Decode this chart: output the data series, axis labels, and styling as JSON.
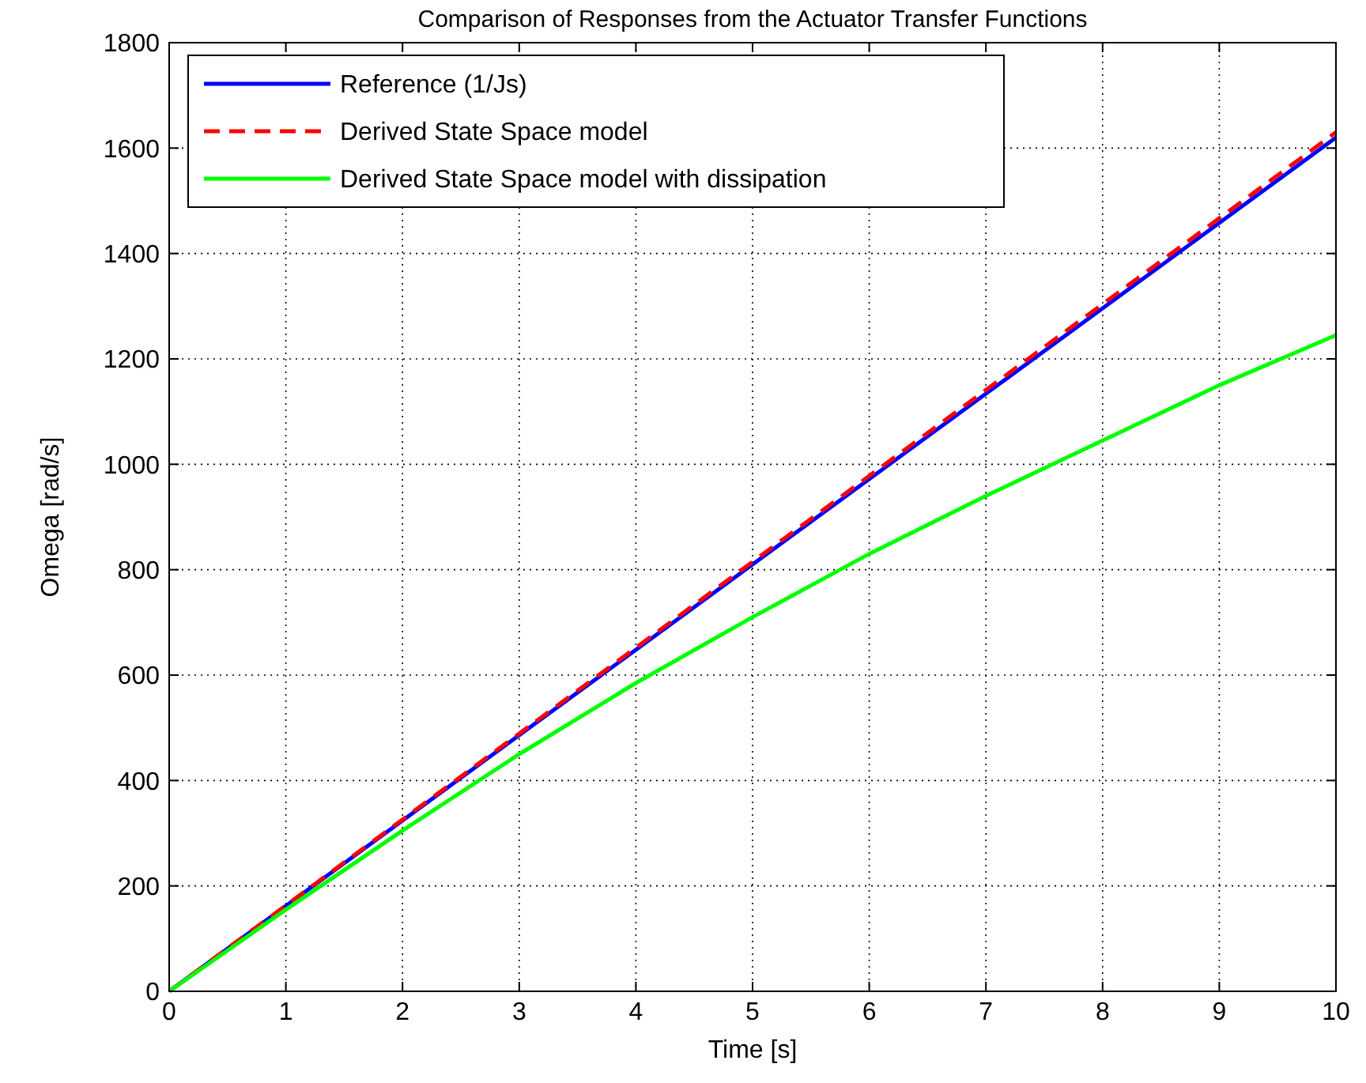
{
  "chart_data": {
    "type": "line",
    "title": "Comparison of Responses from the Actuator Transfer Functions",
    "xlabel": "Time [s]",
    "ylabel": "Omega [rad/s]",
    "x": [
      0,
      1,
      2,
      3,
      4,
      5,
      6,
      7,
      8,
      9,
      10
    ],
    "series": [
      {
        "name": "Reference (1/Js)",
        "color": "#0000ff",
        "values": [
          0,
          162,
          324,
          486,
          648,
          810,
          972,
          1134,
          1296,
          1458,
          1620
        ]
      },
      {
        "name": "Derived State Space model",
        "color": "#ff0000",
        "line_style": "dashed",
        "values": [
          0,
          163,
          326,
          489,
          652,
          815,
          978,
          1141,
          1304,
          1467,
          1630
        ]
      },
      {
        "name": "Derived State Space model with dissipation",
        "color": "#00ff00",
        "values": [
          0,
          155,
          305,
          450,
          585,
          710,
          830,
          940,
          1045,
          1150,
          1245
        ]
      }
    ],
    "xlim": [
      0,
      10
    ],
    "ylim": [
      0,
      1800
    ],
    "xticks": [
      0,
      1,
      2,
      3,
      4,
      5,
      6,
      7,
      8,
      9,
      10
    ],
    "yticks": [
      0,
      200,
      400,
      600,
      800,
      1000,
      1200,
      1400,
      1600,
      1800
    ],
    "grid": true,
    "legend": "top left"
  }
}
